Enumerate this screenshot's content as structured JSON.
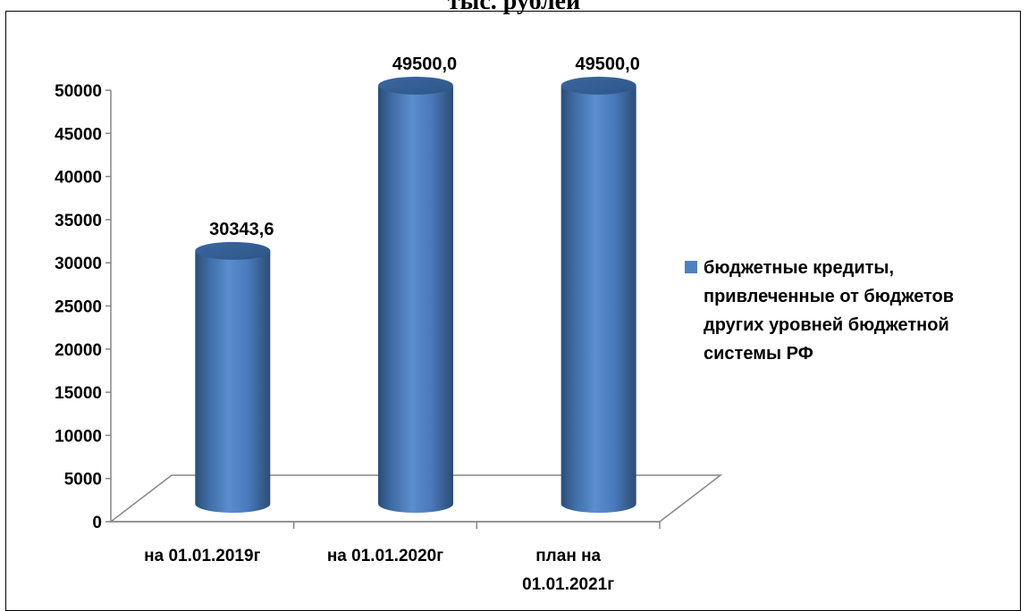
{
  "page": {
    "title": "тыс. рублей"
  },
  "colors": {
    "bar": "#4f81bd",
    "bar_dark": "#2c4d75",
    "bar_light": "#8db3e2",
    "axis": "#868686"
  },
  "legend": {
    "label": "бюджетные кредиты,\nпривлеченные от бюджетов\nдругих уровней бюджетной\nсистемы РФ"
  },
  "chart_data": {
    "type": "bar",
    "style": "3d-cylinder",
    "categories": [
      "на 01.01.2019г",
      "на 01.01.2020г",
      "план на 01.01.2021г"
    ],
    "category_lines": [
      [
        "на 01.01.2019г"
      ],
      [
        "на 01.01.2020г"
      ],
      [
        "план на",
        "01.01.2021г"
      ]
    ],
    "series": [
      {
        "name": "бюджетные кредиты, привлеченные от бюджетов других уровней бюджетной системы РФ",
        "values": [
          30343.6,
          49500.0,
          49500.0
        ],
        "labels": [
          "30343,6",
          "49500,0",
          "49500,0"
        ]
      }
    ],
    "yticks": [
      "0",
      "5000",
      "10000",
      "15000",
      "20000",
      "25000",
      "30000",
      "35000",
      "40000",
      "45000",
      "50000"
    ],
    "ylim": [
      0,
      50000
    ],
    "grid": false,
    "legend_position": "right"
  }
}
